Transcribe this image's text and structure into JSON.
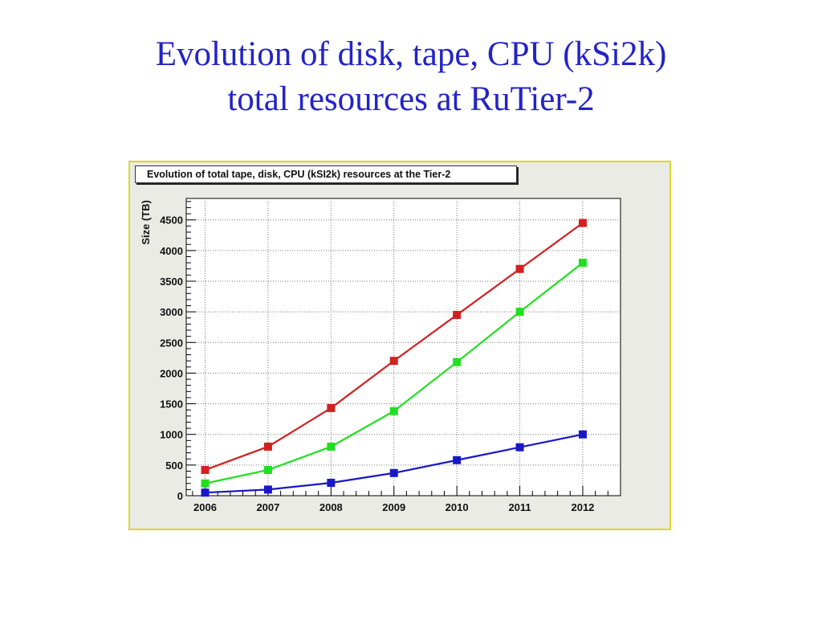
{
  "slide": {
    "title_line1": "Evolution of disk, tape, CPU (kSi2k)",
    "title_line2": "total resources at RuTier-2"
  },
  "chart_data": {
    "type": "line",
    "title": "Evolution of total tape, disk, CPU (kSI2k) resources at the Tier-2",
    "xlabel": "",
    "ylabel": "Size (TB)",
    "x": [
      2006,
      2007,
      2008,
      2009,
      2010,
      2011,
      2012
    ],
    "x_tick_labels": [
      "2006",
      "2007",
      "2008",
      "2009",
      "2010",
      "2011",
      "2012"
    ],
    "y_tick_labels": [
      "0",
      "500",
      "1000",
      "1500",
      "2000",
      "2500",
      "3000",
      "3500",
      "4000",
      "4500"
    ],
    "ylim": [
      0,
      4850
    ],
    "xlim": [
      2005.7,
      2012.6
    ],
    "grid": true,
    "marker": "square",
    "series": [
      {
        "color": "#d42020",
        "values": [
          420,
          800,
          1430,
          2200,
          2950,
          3700,
          4450
        ]
      },
      {
        "color": "#1fe01f",
        "values": [
          200,
          420,
          800,
          1380,
          2180,
          3000,
          3800
        ]
      },
      {
        "color": "#1818c8",
        "values": [
          50,
          100,
          210,
          370,
          580,
          790,
          1000
        ]
      }
    ]
  }
}
